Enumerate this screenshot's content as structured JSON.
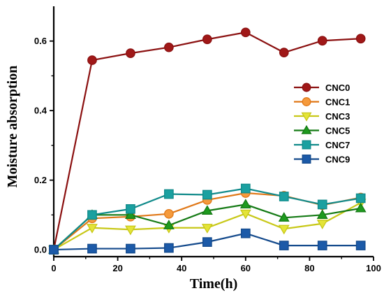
{
  "chart_data": {
    "type": "line",
    "xlabel": "Time(h)",
    "ylabel": "Moisture absorption",
    "xlim": [
      0,
      100
    ],
    "ylim": [
      -0.02,
      0.7
    ],
    "xticks": [
      0,
      20,
      40,
      60,
      80,
      100
    ],
    "yticks": [
      0.0,
      0.2,
      0.4,
      0.6
    ],
    "ytick_labels": [
      "0.0",
      "0.2",
      "0.4",
      "0.6"
    ],
    "grid": false,
    "legend_position": "center-right",
    "x": [
      0,
      12,
      24,
      36,
      48,
      60,
      72,
      84,
      96
    ],
    "series": [
      {
        "name": "CNC0",
        "marker": "circle",
        "color": "#8b1010",
        "fill": "#a01818",
        "values": [
          0.0,
          0.545,
          0.565,
          0.582,
          0.605,
          0.625,
          0.567,
          0.601,
          0.607
        ]
      },
      {
        "name": "CNC1",
        "marker": "circle",
        "color": "#e07818",
        "fill": "#f59a3c",
        "values": [
          0.0,
          0.09,
          0.095,
          0.103,
          0.143,
          0.163,
          0.155,
          0.128,
          0.15
        ]
      },
      {
        "name": "CNC3",
        "marker": "triangle-down",
        "color": "#c8c818",
        "fill": "#e4e438",
        "values": [
          0.0,
          0.063,
          0.058,
          0.063,
          0.063,
          0.104,
          0.06,
          0.075,
          0.135
        ]
      },
      {
        "name": "CNC5",
        "marker": "triangle-up",
        "color": "#147a14",
        "fill": "#1e9a1e",
        "values": [
          0.0,
          0.1,
          0.1,
          0.07,
          0.112,
          0.13,
          0.092,
          0.1,
          0.119
        ]
      },
      {
        "name": "CNC7",
        "marker": "square",
        "color": "#108a8a",
        "fill": "#1aa0a0",
        "values": [
          0.0,
          0.1,
          0.117,
          0.16,
          0.158,
          0.176,
          0.153,
          0.13,
          0.148
        ]
      },
      {
        "name": "CNC9",
        "marker": "square",
        "color": "#144a8c",
        "fill": "#1c5aa8",
        "values": [
          0.0,
          0.003,
          0.003,
          0.005,
          0.022,
          0.047,
          0.012,
          0.012,
          0.012
        ]
      }
    ]
  }
}
